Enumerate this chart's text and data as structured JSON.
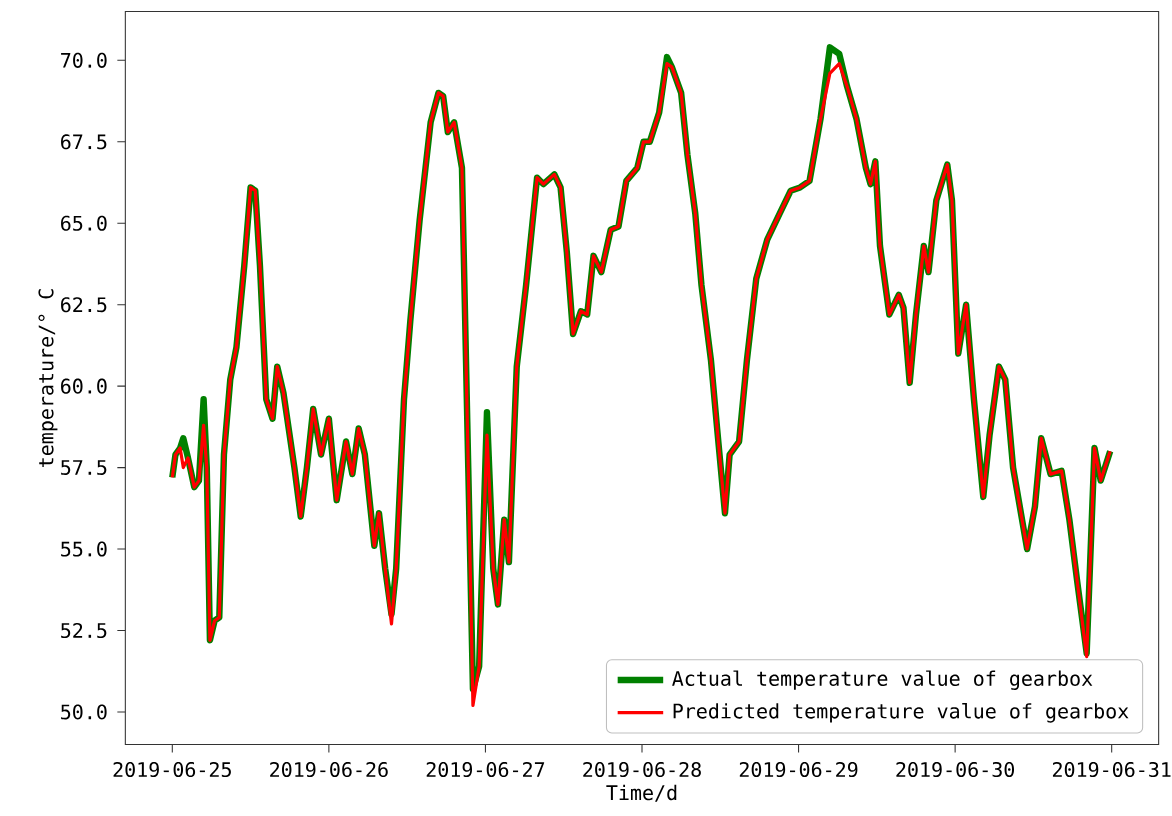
{
  "chart_data": {
    "type": "line",
    "xlabel": "Time/d",
    "ylabel": "temperature/° C",
    "xlim": [
      "2019-06-24T16:48",
      "2019-07-01T07:12"
    ],
    "ylim": [
      49.0,
      71.5
    ],
    "xticks": [
      "2019-06-25",
      "2019-06-26",
      "2019-06-27",
      "2019-06-28",
      "2019-06-29",
      "2019-06-30",
      {
        "value": "2019-07-01",
        "label": "2019-06-31"
      }
    ],
    "yticks": [
      {
        "value": 50,
        "label": "50.0"
      },
      {
        "value": 52.5,
        "label": "52.5"
      },
      {
        "value": 55,
        "label": "55.0"
      },
      {
        "value": 57.5,
        "label": "57.5"
      },
      {
        "value": 60,
        "label": "60.0"
      },
      {
        "value": 62.5,
        "label": "62.5"
      },
      {
        "value": 65,
        "label": "65.0"
      },
      {
        "value": 67.5,
        "label": "67.5"
      },
      {
        "value": 70,
        "label": "70.0"
      }
    ],
    "x": [
      "2019-06-25T00:00",
      "2019-06-25T00:29",
      "2019-06-25T01:12",
      "2019-06-25T01:41",
      "2019-06-25T02:24",
      "2019-06-25T03:22",
      "2019-06-25T04:05",
      "2019-06-25T04:48",
      "2019-06-25T05:17",
      "2019-06-25T05:46",
      "2019-06-25T06:29",
      "2019-06-25T07:12",
      "2019-06-25T07:55",
      "2019-06-25T08:53",
      "2019-06-25T09:50",
      "2019-06-25T11:02",
      "2019-06-25T12:00",
      "2019-06-25T12:43",
      "2019-06-25T13:26",
      "2019-06-25T14:24",
      "2019-06-25T15:22",
      "2019-06-25T16:05",
      "2019-06-25T17:02",
      "2019-06-25T18:43",
      "2019-06-25T19:41",
      "2019-06-25T20:38",
      "2019-06-25T21:36",
      "2019-06-25T22:48",
      "2019-06-26T00:00",
      "2019-06-26T01:12",
      "2019-06-26T02:38",
      "2019-06-26T03:36",
      "2019-06-26T04:34",
      "2019-06-26T05:31",
      "2019-06-26T06:58",
      "2019-06-26T07:41",
      "2019-06-26T08:38",
      "2019-06-26T09:36",
      "2019-06-26T10:19",
      "2019-06-26T11:31",
      "2019-06-26T12:29",
      "2019-06-26T13:55",
      "2019-06-26T15:36",
      "2019-06-26T16:48",
      "2019-06-26T17:31",
      "2019-06-26T18:14",
      "2019-06-26T19:12",
      "2019-06-26T20:24",
      "2019-06-26T21:22",
      "2019-06-26T22:05",
      "2019-06-26T23:02",
      "2019-06-27T00:14",
      "2019-06-27T01:12",
      "2019-06-27T01:55",
      "2019-06-27T02:53",
      "2019-06-27T03:36",
      "2019-06-27T04:48",
      "2019-06-27T06:14",
      "2019-06-27T07:55",
      "2019-06-27T08:53",
      "2019-06-27T10:34",
      "2019-06-27T11:31",
      "2019-06-27T12:29",
      "2019-06-27T13:26",
      "2019-06-27T14:38",
      "2019-06-27T15:36",
      "2019-06-27T16:34",
      "2019-06-27T17:46",
      "2019-06-27T19:12",
      "2019-06-27T20:24",
      "2019-06-27T21:36",
      "2019-06-27T23:17",
      "2019-06-28T00:14",
      "2019-06-28T01:12",
      "2019-06-28T02:38",
      "2019-06-28T03:50",
      "2019-06-28T04:34",
      "2019-06-28T06:00",
      "2019-06-28T06:58",
      "2019-06-28T08:10",
      "2019-06-28T09:07",
      "2019-06-28T10:34",
      "2019-06-28T11:31",
      "2019-06-28T12:43",
      "2019-06-28T13:26",
      "2019-06-28T14:53",
      "2019-06-28T16:05",
      "2019-06-28T17:31",
      "2019-06-28T19:12",
      "2019-06-28T21:07",
      "2019-06-28T22:48",
      "2019-06-29T00:14",
      "2019-06-29T01:41",
      "2019-06-29T03:22",
      "2019-06-29T04:48",
      "2019-06-29T06:14",
      "2019-06-29T07:26",
      "2019-06-29T08:53",
      "2019-06-29T10:19",
      "2019-06-29T11:02",
      "2019-06-29T11:46",
      "2019-06-29T12:29",
      "2019-06-29T13:55",
      "2019-06-29T15:22",
      "2019-06-29T16:05",
      "2019-06-29T17:02",
      "2019-06-29T18:00",
      "2019-06-29T19:12",
      "2019-06-29T19:55",
      "2019-06-29T21:07",
      "2019-06-29T22:48",
      "2019-06-29T23:31",
      "2019-06-30T00:29",
      "2019-06-30T01:41",
      "2019-06-30T02:53",
      "2019-06-30T04:19",
      "2019-06-30T05:17",
      "2019-06-30T06:43",
      "2019-06-30T07:41",
      "2019-06-30T08:53",
      "2019-06-30T11:02",
      "2019-06-30T12:14",
      "2019-06-30T13:12",
      "2019-06-30T14:38",
      "2019-06-30T16:19",
      "2019-06-30T17:31",
      "2019-06-30T18:43",
      "2019-06-30T20:10",
      "2019-06-30T21:22",
      "2019-06-30T22:19",
      "2019-06-30T23:46"
    ],
    "series": [
      {
        "name": "Actual temperature value of gearbox",
        "color": "#008000",
        "values": [
          57.2,
          57.9,
          58.1,
          58.4,
          57.8,
          56.9,
          57.1,
          59.6,
          57.5,
          52.2,
          52.8,
          52.9,
          57.9,
          60.2,
          61.2,
          63.7,
          66.1,
          66.0,
          63.7,
          59.6,
          59.0,
          60.6,
          59.8,
          57.5,
          56.0,
          57.5,
          59.3,
          57.9,
          59.0,
          56.5,
          58.3,
          57.3,
          58.7,
          57.9,
          55.1,
          56.1,
          54.4,
          53.0,
          54.4,
          59.6,
          62.0,
          65.1,
          68.1,
          69.0,
          68.9,
          67.8,
          68.1,
          66.7,
          57.5,
          50.7,
          51.4,
          59.2,
          54.4,
          53.3,
          55.9,
          54.6,
          60.6,
          63.1,
          66.4,
          66.2,
          66.5,
          66.1,
          64.1,
          61.6,
          62.3,
          62.2,
          64.0,
          63.5,
          64.8,
          64.9,
          66.3,
          66.7,
          67.5,
          67.5,
          68.4,
          70.1,
          69.8,
          69.0,
          67.1,
          65.3,
          63.1,
          60.8,
          58.7,
          56.1,
          57.9,
          58.3,
          60.8,
          63.3,
          64.5,
          65.3,
          66.0,
          66.1,
          66.3,
          68.2,
          70.4,
          70.2,
          69.2,
          68.2,
          66.7,
          66.2,
          66.9,
          64.3,
          62.2,
          62.8,
          62.4,
          60.1,
          62.2,
          64.3,
          63.5,
          65.7,
          66.8,
          65.7,
          61.0,
          62.5,
          59.6,
          56.6,
          58.5,
          60.6,
          60.2,
          57.5,
          55.0,
          56.3,
          58.4,
          57.3,
          57.4,
          55.9,
          54.0,
          51.8,
          58.1,
          57.1,
          58.0
        ]
      },
      {
        "name": "Predicted temperature value of gearbox",
        "color": "#ff0000",
        "values": [
          57.2,
          57.9,
          58.1,
          57.5,
          57.8,
          56.9,
          57.1,
          58.8,
          57.5,
          52.2,
          52.8,
          52.9,
          57.9,
          60.2,
          61.2,
          63.7,
          66.1,
          66.0,
          63.7,
          59.6,
          59.0,
          60.6,
          59.8,
          57.5,
          56.0,
          57.5,
          59.3,
          57.9,
          59.0,
          56.5,
          58.3,
          57.3,
          58.7,
          57.9,
          55.1,
          56.1,
          54.4,
          52.7,
          54.4,
          59.6,
          62.0,
          65.1,
          68.1,
          69.0,
          68.9,
          67.8,
          68.1,
          66.7,
          57.5,
          50.2,
          51.4,
          58.5,
          54.4,
          53.3,
          55.9,
          54.6,
          60.6,
          63.1,
          66.4,
          66.2,
          66.5,
          66.1,
          64.1,
          61.6,
          62.3,
          62.2,
          64.0,
          63.5,
          64.8,
          64.9,
          66.3,
          66.7,
          67.5,
          67.5,
          68.4,
          69.9,
          69.8,
          69.0,
          67.1,
          65.3,
          63.1,
          60.8,
          58.7,
          56.1,
          57.9,
          58.3,
          60.8,
          63.3,
          64.5,
          65.3,
          66.0,
          66.1,
          66.3,
          68.2,
          69.6,
          69.9,
          69.2,
          68.2,
          66.7,
          66.2,
          66.9,
          64.3,
          62.2,
          62.8,
          62.4,
          60.1,
          62.2,
          64.3,
          63.5,
          65.7,
          66.8,
          65.7,
          61.0,
          62.5,
          59.6,
          56.6,
          58.5,
          60.6,
          60.2,
          57.5,
          55.0,
          56.3,
          58.4,
          57.3,
          57.4,
          55.9,
          54.0,
          51.7,
          58.1,
          57.1,
          58.0
        ]
      }
    ],
    "legend": "bottom right",
    "marker": "none",
    "line_style": "solid",
    "grid": false
  }
}
